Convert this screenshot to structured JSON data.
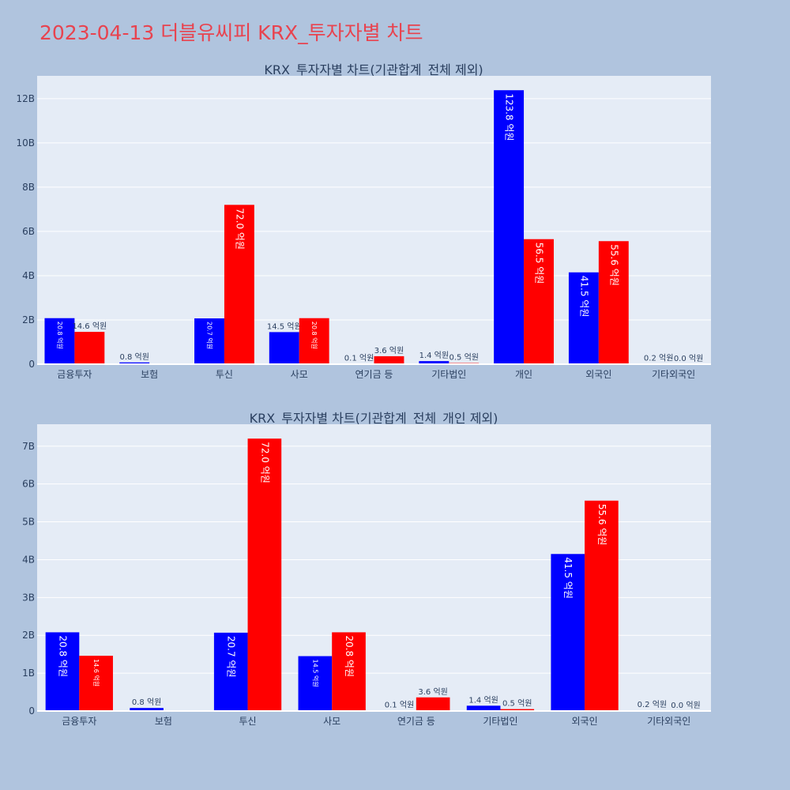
{
  "page": {
    "title": "2023-04-13 더블유씨피 KRX_투자자별 차트",
    "colors": {
      "background": "#b0c4de",
      "plot_bg": "#e5ecf6",
      "title": "#e8434f",
      "buy": "#0000ff",
      "sell": "#ff0000"
    }
  },
  "chart_data": [
    {
      "type": "bar",
      "title": "KRX_투자자별 차트(기관합계_전체 제외)",
      "categories": [
        "금융투자",
        "보험",
        "투신",
        "사모",
        "연기금 등",
        "기타법인",
        "개인",
        "외국인",
        "기타외국인"
      ],
      "series": [
        {
          "color": "#0000ff",
          "values": [
            2080000000,
            80000000,
            2070000000,
            1450000000,
            10000000,
            140000000,
            12380000000,
            4150000000,
            20000000
          ]
        },
        {
          "color": "#ff0000",
          "values": [
            1460000000,
            0,
            7200000000,
            2080000000,
            360000000,
            50000000,
            5650000000,
            5560000000,
            0
          ]
        }
      ],
      "labels": [
        [
          "20.8 억원",
          "0.8 억원",
          "20.7 억원",
          "14.5 억원",
          "0.1 억원",
          "1.4 억원",
          "123.8 억원",
          "41.5 억원",
          "0.2 억원"
        ],
        [
          "14.6 억원",
          "",
          "72.0 억원",
          "20.8 억원",
          "3.6 억원",
          "0.5 억원",
          "56.5 억원",
          "55.6 억원",
          "0.0 억원"
        ]
      ],
      "yticks": [
        0,
        2000000000,
        4000000000,
        6000000000,
        8000000000,
        10000000000,
        12000000000
      ],
      "ytick_labels": [
        "0",
        "2B",
        "4B",
        "6B",
        "8B",
        "10B",
        "12B"
      ],
      "ylim": [
        0,
        13030000000
      ],
      "grid": true
    },
    {
      "type": "bar",
      "title": "KRX_투자자별 차트(기관합계_전체_개인 제외)",
      "categories": [
        "금융투자",
        "보험",
        "투신",
        "사모",
        "연기금 등",
        "기타법인",
        "외국인",
        "기타외국인"
      ],
      "series": [
        {
          "color": "#0000ff",
          "values": [
            2080000000,
            80000000,
            2070000000,
            1450000000,
            10000000,
            140000000,
            4150000000,
            20000000
          ]
        },
        {
          "color": "#ff0000",
          "values": [
            1460000000,
            0,
            7200000000,
            2080000000,
            360000000,
            50000000,
            5560000000,
            0
          ]
        }
      ],
      "labels": [
        [
          "20.8 억원",
          "0.8 억원",
          "20.7 억원",
          "14.5 억원",
          "0.1 억원",
          "1.4 억원",
          "41.5 억원",
          "0.2 억원"
        ],
        [
          "14.6 억원",
          "",
          "72.0 억원",
          "20.8 억원",
          "3.6 억원",
          "0.5 억원",
          "55.6 억원",
          "0.0 억원"
        ]
      ],
      "yticks": [
        0,
        1000000000,
        2000000000,
        3000000000,
        4000000000,
        5000000000,
        6000000000,
        7000000000
      ],
      "ytick_labels": [
        "0",
        "1B",
        "2B",
        "3B",
        "4B",
        "5B",
        "6B",
        "7B"
      ],
      "ylim": [
        0,
        7580000000
      ],
      "grid": true
    }
  ]
}
